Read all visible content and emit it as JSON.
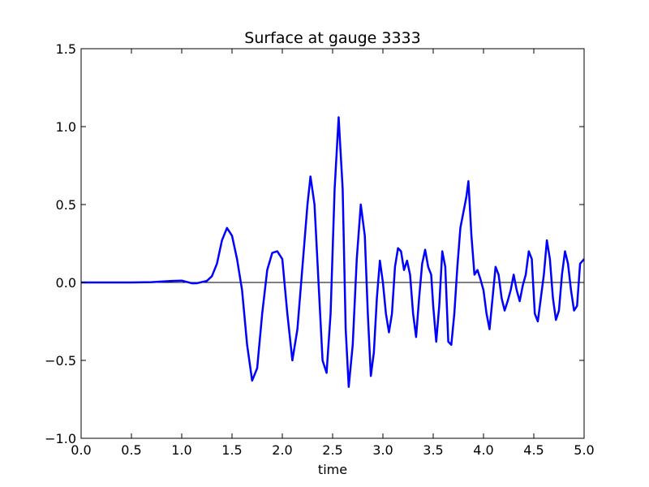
{
  "chart_data": {
    "type": "line",
    "title": "Surface at gauge 3333",
    "x_label": "time",
    "x": [
      0,
      0.5,
      0.7,
      0.9,
      1.0,
      1.1,
      1.15,
      1.25,
      1.3,
      1.35,
      1.4,
      1.45,
      1.5,
      1.55,
      1.6,
      1.65,
      1.7,
      1.75,
      1.8,
      1.85,
      1.9,
      1.95,
      2.0,
      2.05,
      2.1,
      2.15,
      2.2,
      2.25,
      2.28,
      2.32,
      2.36,
      2.4,
      2.44,
      2.48,
      2.52,
      2.56,
      2.6,
      2.63,
      2.66,
      2.7,
      2.74,
      2.78,
      2.82,
      2.85,
      2.88,
      2.91,
      2.94,
      2.97,
      3.0,
      3.03,
      3.06,
      3.09,
      3.12,
      3.15,
      3.18,
      3.21,
      3.24,
      3.27,
      3.3,
      3.33,
      3.36,
      3.39,
      3.42,
      3.45,
      3.48,
      3.5,
      3.53,
      3.56,
      3.59,
      3.62,
      3.65,
      3.68,
      3.71,
      3.74,
      3.77,
      3.8,
      3.83,
      3.85,
      3.88,
      3.91,
      3.94,
      3.97,
      4.0,
      4.03,
      4.06,
      4.09,
      4.12,
      4.15,
      4.18,
      4.21,
      4.24,
      4.27,
      4.3,
      4.33,
      4.36,
      4.39,
      4.42,
      4.45,
      4.48,
      4.51,
      4.54,
      4.57,
      4.6,
      4.63,
      4.66,
      4.69,
      4.72,
      4.75,
      4.78,
      4.81,
      4.84,
      4.87,
      4.9,
      4.93,
      4.96,
      5.0
    ],
    "series": [
      {
        "color": "#0000ff",
        "values": [
          0,
          0,
          0.002,
          0.01,
          0.012,
          -0.005,
          -0.005,
          0.01,
          0.04,
          0.12,
          0.27,
          0.35,
          0.3,
          0.15,
          -0.05,
          -0.4,
          -0.63,
          -0.55,
          -0.2,
          0.08,
          0.19,
          0.2,
          0.15,
          -0.2,
          -0.5,
          -0.3,
          0.1,
          0.5,
          0.68,
          0.5,
          0,
          -0.5,
          -0.58,
          -0.2,
          0.6,
          1.06,
          0.6,
          -0.3,
          -0.67,
          -0.4,
          0.15,
          0.5,
          0.3,
          -0.2,
          -0.6,
          -0.45,
          -0.1,
          0.14,
          0,
          -0.2,
          -0.32,
          -0.2,
          0.1,
          0.22,
          0.2,
          0.08,
          0.14,
          0.05,
          -0.2,
          -0.35,
          -0.1,
          0.12,
          0.21,
          0.1,
          0.05,
          -0.15,
          -0.38,
          -0.15,
          0.2,
          0.1,
          -0.38,
          -0.4,
          -0.2,
          0.1,
          0.35,
          0.45,
          0.55,
          0.65,
          0.3,
          0.05,
          0.08,
          0.02,
          -0.05,
          -0.2,
          -0.3,
          -0.1,
          0.1,
          0.05,
          -0.1,
          -0.18,
          -0.12,
          -0.05,
          0.05,
          -0.05,
          -0.12,
          -0.02,
          0.05,
          0.2,
          0.15,
          -0.2,
          -0.25,
          -0.1,
          0.05,
          0.27,
          0.15,
          -0.1,
          -0.24,
          -0.18,
          0.05,
          0.2,
          0.12,
          -0.05,
          -0.18,
          -0.15,
          0.12,
          0.15
        ]
      }
    ],
    "xlim": [
      0,
      5
    ],
    "ylim": [
      -1,
      1.5
    ],
    "xticks": [
      {
        "value": 0,
        "label": "0.0"
      },
      0.5,
      {
        "value": 1,
        "label": "1.0"
      },
      1.5,
      {
        "value": 2,
        "label": "2.0"
      },
      2.5,
      {
        "value": 3,
        "label": "3.0"
      },
      3.5,
      {
        "value": 4,
        "label": "4.0"
      },
      4.5,
      {
        "value": 5,
        "label": "5.0"
      }
    ],
    "yticks": [
      {
        "value": -1,
        "label": "−1.0"
      },
      {
        "value": -0.5,
        "label": "−0.5"
      },
      {
        "value": 0,
        "label": "0.0"
      },
      0.5,
      {
        "value": 1,
        "label": "1.0"
      },
      1.5
    ]
  }
}
